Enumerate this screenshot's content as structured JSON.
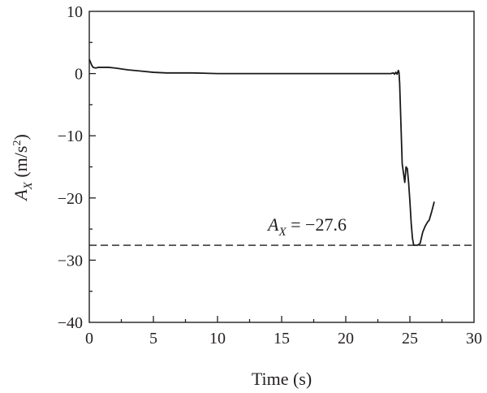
{
  "chart_data": {
    "type": "line",
    "xlabel": "Time (s)",
    "ylabel": {
      "symbol": "A",
      "subscript": "X",
      "unit_prefix": " (m/s",
      "unit_power": "2",
      "unit_suffix": ")"
    },
    "xlim": [
      0,
      30
    ],
    "ylim": [
      -40,
      10
    ],
    "xticks": [
      0,
      5,
      10,
      15,
      20,
      25,
      30
    ],
    "yticks": [
      10,
      0,
      -10,
      -20,
      -30,
      -40
    ],
    "ytick_labels": [
      "10",
      "0",
      "−10",
      "−20",
      "−30",
      "−40"
    ],
    "grid": false,
    "legend": "none",
    "series": [
      {
        "x": [
          0.0,
          0.1,
          0.2,
          0.3,
          0.5,
          0.7,
          1.0,
          1.5,
          2.0,
          3.0,
          4.0,
          5.0,
          6.0,
          7.0,
          8.0,
          10.0,
          12.0,
          15.0,
          18.0,
          20.0,
          22.0,
          23.0,
          23.5,
          23.7,
          23.8,
          23.9,
          24.0,
          24.1,
          24.15,
          24.2,
          24.3,
          24.4,
          24.5,
          24.6,
          24.7,
          24.8,
          24.9,
          25.0,
          25.1,
          25.2,
          25.3,
          25.4,
          25.6,
          25.8,
          25.9,
          26.0,
          26.2,
          26.4,
          26.5,
          26.7,
          26.9
        ],
        "y": [
          2.3,
          1.8,
          1.3,
          1.0,
          0.9,
          1.0,
          1.0,
          1.0,
          0.9,
          0.6,
          0.4,
          0.2,
          0.1,
          0.1,
          0.1,
          0.0,
          0.0,
          0.0,
          0.0,
          0.0,
          0.0,
          0.0,
          0.0,
          0.1,
          -0.1,
          0.2,
          -0.1,
          0.5,
          0.2,
          -1.5,
          -8.0,
          -14.5,
          -16.0,
          -17.5,
          -15.0,
          -15.3,
          -17.5,
          -20.5,
          -24.0,
          -26.5,
          -27.6,
          -27.6,
          -27.6,
          -27.3,
          -26.4,
          -25.5,
          -24.5,
          -23.8,
          -23.6,
          -22.2,
          -20.6
        ]
      }
    ],
    "reference_line": {
      "y": -27.6,
      "style": "dashed"
    },
    "annotation": {
      "symbol": "A",
      "subscript": "X",
      "rest": " = −27.6"
    },
    "colors": {
      "line": "#1a1a1a",
      "axes": "#231f20"
    }
  }
}
